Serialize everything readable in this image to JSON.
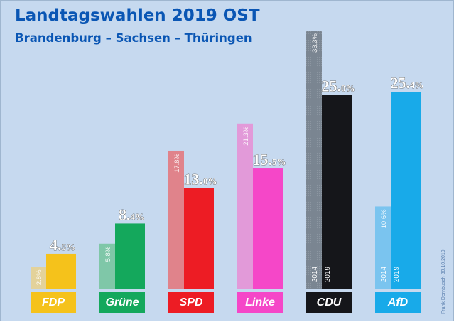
{
  "header": {
    "title": "Landtagswahlen 2019 OST",
    "subtitle": "Brandenburg – Sachsen – Thüringen"
  },
  "credit": "Frank Dernbusch 30.10.2019",
  "chart_data": {
    "type": "bar",
    "title": "Landtagswahlen 2019 OST",
    "subtitle": "Brandenburg – Sachsen – Thüringen",
    "categories": [
      "FDP",
      "Grüne",
      "SPD",
      "Linke",
      "CDU",
      "AfD"
    ],
    "series": [
      {
        "name": "2014",
        "values": [
          2.8,
          5.8,
          17.8,
          21.3,
          33.3,
          10.6
        ],
        "labels": [
          "2.8%",
          "5.8%",
          "17.8%",
          "21.3%",
          "33.3%",
          "10.6%"
        ]
      },
      {
        "name": "2019",
        "values": [
          4.5,
          8.4,
          13.0,
          15.5,
          25.0,
          25.4
        ],
        "labels": [
          [
            "4.",
            "5%"
          ],
          [
            "8.",
            "4%"
          ],
          [
            "13.",
            "0%"
          ],
          [
            "15.",
            "5%"
          ],
          [
            "25.",
            "0%"
          ],
          [
            "25.",
            "4%"
          ]
        ]
      }
    ],
    "bar_inner_labels": {
      "cdu_2014": "2014",
      "cdu_2019": "2019",
      "afd_2014": "2014",
      "afd_2019": "2019"
    },
    "ylim": [
      0,
      34
    ],
    "grid": false,
    "legend": "none"
  },
  "colors": {
    "background": "#c6d9ef",
    "title": "#0a56b4",
    "parties": {
      "FDP": {
        "old": "#e3d29a",
        "new": "#f5c21b"
      },
      "Grüne": {
        "old": "#7fc7a8",
        "new": "#14a85c"
      },
      "SPD": {
        "old": "#e0838b",
        "new": "#ed1c24"
      },
      "Linke": {
        "old": "#e29ad9",
        "new": "#f547c8"
      },
      "CDU": {
        "old": "#7a8591",
        "new": "#15161a"
      },
      "AfD": {
        "old": "#7ac4ef",
        "new": "#18aae9"
      }
    }
  }
}
